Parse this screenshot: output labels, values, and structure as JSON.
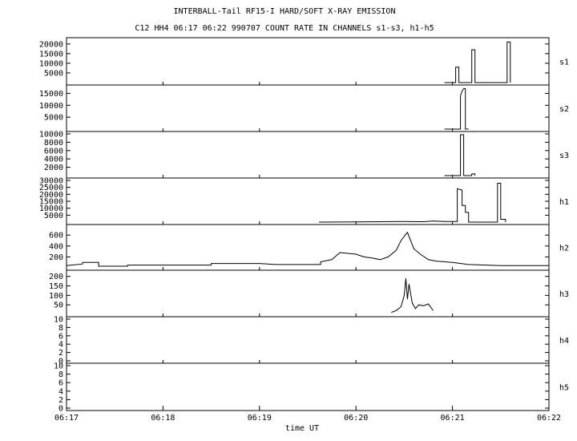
{
  "title": "INTERBALL-Tail RF15-I HARD/SOFT X-RAY EMISSION",
  "subtitle": "C12 HH4 06:17 06:22 990707  COUNT RATE IN CHANNELS s1-s3, h1-h5",
  "chart_data": {
    "type": "line",
    "xlabel": "time UT",
    "xlim": [
      "06:17",
      "06:22"
    ],
    "x_ticks": [
      "06:17",
      "06:18",
      "06:19",
      "06:20",
      "06:21",
      "06:22"
    ],
    "panels": [
      {
        "name": "s1",
        "ylim": [
          0,
          22000
        ],
        "y_ticks": [
          "20000",
          "15000",
          "10000",
          "5000"
        ],
        "points": [
          [
            "06:20:55",
            0
          ],
          [
            "06:21:02",
            0
          ],
          [
            "06:21:02",
            8000
          ],
          [
            "06:21:04",
            8000
          ],
          [
            "06:21:04",
            0
          ],
          [
            "06:21:12",
            0
          ],
          [
            "06:21:12",
            17000
          ],
          [
            "06:21:14",
            17000
          ],
          [
            "06:21:14",
            0
          ],
          [
            "06:21:34",
            0
          ],
          [
            "06:21:34",
            21000
          ],
          [
            "06:21:36",
            21000
          ],
          [
            "06:21:36",
            0
          ]
        ]
      },
      {
        "name": "s2",
        "ylim": [
          0,
          17500
        ],
        "y_ticks": [
          "15000",
          "10000",
          "5000"
        ],
        "points": [
          [
            "06:20:55",
            0
          ],
          [
            "06:21:05",
            0
          ],
          [
            "06:21:05",
            14000
          ],
          [
            "06:21:06",
            16000
          ],
          [
            "06:21:07",
            17000
          ],
          [
            "06:21:08",
            17000
          ],
          [
            "06:21:08",
            0
          ],
          [
            "06:21:10",
            0
          ]
        ]
      },
      {
        "name": "s3",
        "ylim": [
          0,
          10000
        ],
        "y_ticks": [
          "10000",
          "8000",
          "6000",
          "4000",
          "2000"
        ],
        "points": [
          [
            "06:20:55",
            0
          ],
          [
            "06:21:05",
            0
          ],
          [
            "06:21:05",
            9800
          ],
          [
            "06:21:07",
            9800
          ],
          [
            "06:21:07",
            0
          ],
          [
            "06:21:12",
            0
          ],
          [
            "06:21:12",
            400
          ],
          [
            "06:21:14",
            400
          ],
          [
            "06:21:14",
            0
          ]
        ]
      },
      {
        "name": "h1",
        "ylim": [
          0,
          30000
        ],
        "y_ticks": [
          "30000",
          "25000",
          "20000",
          "15000",
          "10000",
          "5000"
        ],
        "points": [
          [
            "06:19:37",
            0
          ],
          [
            "06:20:00",
            200
          ],
          [
            "06:20:30",
            400
          ],
          [
            "06:20:42",
            300
          ],
          [
            "06:20:48",
            800
          ],
          [
            "06:20:55",
            400
          ],
          [
            "06:21:03",
            400
          ],
          [
            "06:21:03",
            24000
          ],
          [
            "06:21:06",
            23000
          ],
          [
            "06:21:06",
            12000
          ],
          [
            "06:21:08",
            12000
          ],
          [
            "06:21:08",
            7000
          ],
          [
            "06:21:10",
            7000
          ],
          [
            "06:21:10",
            0
          ],
          [
            "06:21:28",
            0
          ],
          [
            "06:21:28",
            28000
          ],
          [
            "06:21:30",
            28000
          ],
          [
            "06:21:30",
            2000
          ],
          [
            "06:21:33",
            2000
          ],
          [
            "06:21:33",
            0
          ]
        ]
      },
      {
        "name": "h2",
        "ylim": [
          0,
          750
        ],
        "y_ticks": [
          "600",
          "400",
          "200"
        ],
        "points": [
          [
            "06:17:00",
            40
          ],
          [
            "06:17:10",
            70
          ],
          [
            "06:17:10",
            100
          ],
          [
            "06:17:20",
            100
          ],
          [
            "06:17:20",
            30
          ],
          [
            "06:17:38",
            30
          ],
          [
            "06:17:38",
            50
          ],
          [
            "06:18:00",
            50
          ],
          [
            "06:18:30",
            50
          ],
          [
            "06:18:30",
            80
          ],
          [
            "06:19:00",
            80
          ],
          [
            "06:19:10",
            60
          ],
          [
            "06:19:38",
            60
          ],
          [
            "06:19:38",
            110
          ],
          [
            "06:19:45",
            150
          ],
          [
            "06:19:50",
            280
          ],
          [
            "06:20:00",
            250
          ],
          [
            "06:20:05",
            200
          ],
          [
            "06:20:10",
            180
          ],
          [
            "06:20:15",
            150
          ],
          [
            "06:20:20",
            200
          ],
          [
            "06:20:25",
            320
          ],
          [
            "06:20:28",
            500
          ],
          [
            "06:20:32",
            650
          ],
          [
            "06:20:36",
            350
          ],
          [
            "06:20:40",
            250
          ],
          [
            "06:20:45",
            150
          ],
          [
            "06:20:50",
            120
          ],
          [
            "06:21:00",
            100
          ],
          [
            "06:21:10",
            60
          ],
          [
            "06:21:30",
            40
          ],
          [
            "06:22:00",
            40
          ]
        ]
      },
      {
        "name": "h3",
        "ylim": [
          0,
          220
        ],
        "y_ticks": [
          "200",
          "150",
          "100",
          "50"
        ],
        "points": [
          [
            "06:20:22",
            10
          ],
          [
            "06:20:25",
            20
          ],
          [
            "06:20:28",
            40
          ],
          [
            "06:20:30",
            100
          ],
          [
            "06:20:31",
            190
          ],
          [
            "06:20:32",
            80
          ],
          [
            "06:20:33",
            160
          ],
          [
            "06:20:35",
            60
          ],
          [
            "06:20:37",
            30
          ],
          [
            "06:20:39",
            50
          ],
          [
            "06:20:42",
            45
          ],
          [
            "06:20:45",
            55
          ],
          [
            "06:20:48",
            20
          ]
        ]
      },
      {
        "name": "h4",
        "ylim": [
          0,
          10
        ],
        "y_ticks": [
          "10",
          "8",
          "6",
          "4",
          "2",
          "0"
        ],
        "points": []
      },
      {
        "name": "h5",
        "ylim": [
          0,
          10
        ],
        "y_ticks": [
          "10",
          "8",
          "6",
          "4",
          "2",
          "0"
        ],
        "points": []
      }
    ]
  }
}
